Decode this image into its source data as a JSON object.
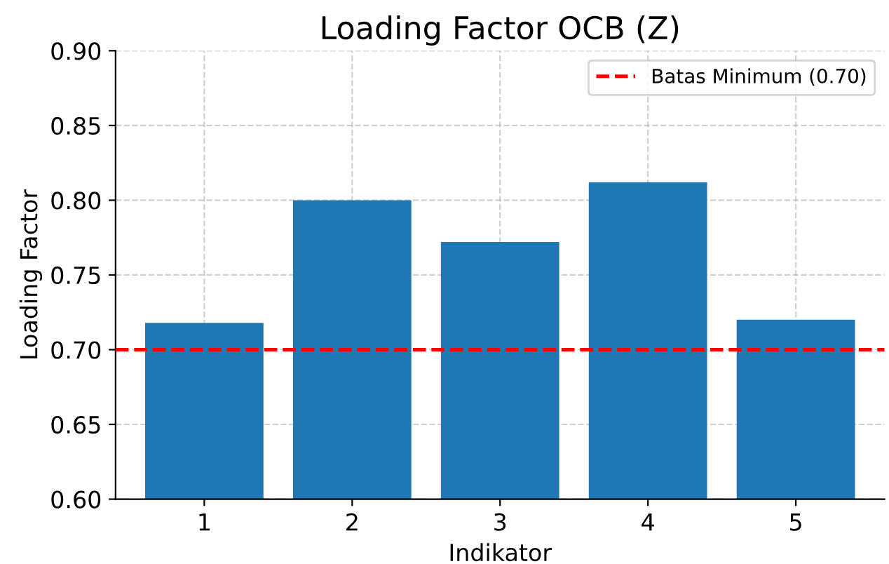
{
  "chart_data": {
    "type": "bar",
    "title": "Loading Factor OCB (Z)",
    "xlabel": "Indikator",
    "ylabel": "Loading Factor",
    "categories": [
      "1",
      "2",
      "3",
      "4",
      "5"
    ],
    "values": [
      0.718,
      0.8,
      0.772,
      0.812,
      0.72
    ],
    "color": "#1f77b4",
    "ylim": [
      0.6,
      0.9
    ],
    "yticks": [
      {
        "value": 0.6,
        "label": "0.60"
      },
      {
        "value": 0.65,
        "label": "0.65"
      },
      {
        "value": 0.7,
        "label": "0.70"
      },
      {
        "value": 0.75,
        "label": "0.75"
      },
      {
        "value": 0.8,
        "label": "0.80"
      },
      {
        "value": 0.85,
        "label": "0.85"
      },
      {
        "value": 0.9,
        "label": "0.90"
      }
    ],
    "ref_lines": [
      {
        "axis": "y",
        "value": 0.7,
        "label": "Batas Minimum (0.70)",
        "color": "#ff0000",
        "line_style": "dashed"
      }
    ],
    "grid": true,
    "legend": "top right"
  }
}
